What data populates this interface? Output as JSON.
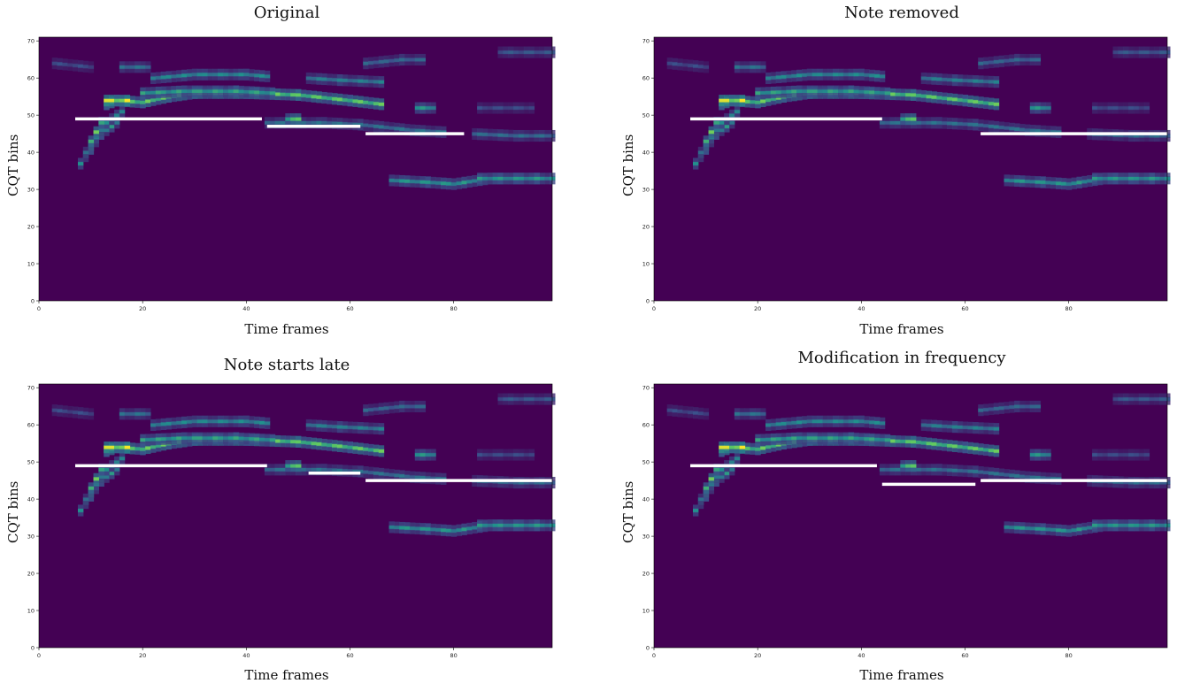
{
  "colors": {
    "background": "#440154",
    "low": "#472d7b",
    "mid": "#2a788e",
    "high": "#35b779",
    "peak": "#fde725",
    "note_line": "#ffffff"
  },
  "chart_data": [
    {
      "type": "heatmap",
      "title": "Original",
      "xlabel": "Time frames",
      "ylabel": "CQT bins",
      "xlim": [
        0,
        99
      ],
      "ylim": [
        0,
        71
      ],
      "xticks": [
        0,
        20,
        40,
        60,
        80
      ],
      "yticks": [
        0,
        10,
        20,
        30,
        40,
        50,
        60,
        70
      ],
      "notes": [
        {
          "start": 7,
          "end": 43,
          "bin": 49
        },
        {
          "start": 44,
          "end": 62,
          "bin": 47
        },
        {
          "start": 63,
          "end": 82,
          "bin": 45
        }
      ]
    },
    {
      "type": "heatmap",
      "title": "Note removed",
      "xlabel": "Time frames",
      "ylabel": "CQT bins",
      "xlim": [
        0,
        99
      ],
      "ylim": [
        0,
        71
      ],
      "xticks": [
        0,
        20,
        40,
        60,
        80
      ],
      "yticks": [
        0,
        10,
        20,
        30,
        40,
        50,
        60,
        70
      ],
      "notes": [
        {
          "start": 7,
          "end": 44,
          "bin": 49
        },
        {
          "start": 63,
          "end": 99,
          "bin": 45
        }
      ]
    },
    {
      "type": "heatmap",
      "title": "Note starts late",
      "xlabel": "Time frames",
      "ylabel": "CQT bins",
      "xlim": [
        0,
        99
      ],
      "ylim": [
        0,
        71
      ],
      "xticks": [
        0,
        20,
        40,
        60,
        80
      ],
      "yticks": [
        0,
        10,
        20,
        30,
        40,
        50,
        60,
        70
      ],
      "notes": [
        {
          "start": 7,
          "end": 44,
          "bin": 49
        },
        {
          "start": 52,
          "end": 62,
          "bin": 47
        },
        {
          "start": 63,
          "end": 99,
          "bin": 45
        }
      ]
    },
    {
      "type": "heatmap",
      "title": "Modification in frequency",
      "xlabel": "Time frames",
      "ylabel": "CQT bins",
      "xlim": [
        0,
        99
      ],
      "ylim": [
        0,
        71
      ],
      "xticks": [
        0,
        20,
        40,
        60,
        80
      ],
      "yticks": [
        0,
        10,
        20,
        30,
        40,
        50,
        60,
        70
      ],
      "notes": [
        {
          "start": 7,
          "end": 43,
          "bin": 49
        },
        {
          "start": 44,
          "end": 62,
          "bin": 44
        },
        {
          "start": 63,
          "end": 99,
          "bin": 45
        }
      ]
    }
  ],
  "spectrogram": {
    "ridges": [
      {
        "points": [
          [
            8,
            37
          ],
          [
            10,
            41
          ],
          [
            12,
            45
          ],
          [
            15,
            48
          ]
        ],
        "intensity": 0.55
      },
      {
        "points": [
          [
            9,
            40
          ],
          [
            11,
            44
          ],
          [
            13,
            48
          ],
          [
            16,
            51
          ]
        ],
        "intensity": 0.5
      },
      {
        "points": [
          [
            10,
            43
          ],
          [
            12,
            48
          ],
          [
            13,
            53
          ],
          [
            15,
            54
          ],
          [
            20,
            53.5
          ],
          [
            25,
            55
          ],
          [
            30,
            56
          ],
          [
            40,
            56
          ],
          [
            50,
            55.5
          ],
          [
            60,
            54
          ],
          [
            66,
            53
          ]
        ],
        "intensity": 0.78
      },
      {
        "points": [
          [
            13,
            54
          ],
          [
            17,
            54
          ]
        ],
        "intensity": 1.0
      },
      {
        "points": [
          [
            20,
            56
          ],
          [
            28,
            56.5
          ],
          [
            38,
            56.5
          ],
          [
            45,
            56
          ]
        ],
        "intensity": 0.6
      },
      {
        "points": [
          [
            22,
            60
          ],
          [
            30,
            61
          ],
          [
            40,
            61
          ],
          [
            44,
            60.5
          ]
        ],
        "intensity": 0.5
      },
      {
        "points": [
          [
            16,
            63
          ],
          [
            21,
            63
          ]
        ],
        "intensity": 0.4
      },
      {
        "points": [
          [
            52,
            60
          ],
          [
            58,
            59.5
          ],
          [
            66,
            59
          ]
        ],
        "intensity": 0.45
      },
      {
        "points": [
          [
            44,
            48
          ],
          [
            55,
            48
          ],
          [
            62,
            47.5
          ],
          [
            72,
            46
          ],
          [
            78,
            45.5
          ]
        ],
        "intensity": 0.4
      },
      {
        "points": [
          [
            48,
            49
          ],
          [
            50,
            49
          ]
        ],
        "intensity": 0.75
      },
      {
        "points": [
          [
            73,
            52
          ],
          [
            76,
            52
          ]
        ],
        "intensity": 0.55
      },
      {
        "points": [
          [
            84,
            45
          ],
          [
            92,
            44.5
          ],
          [
            99,
            44.5
          ]
        ],
        "intensity": 0.38
      },
      {
        "points": [
          [
            68,
            32.5
          ],
          [
            75,
            32
          ],
          [
            80,
            31.5
          ],
          [
            87,
            33
          ],
          [
            99,
            33
          ]
        ],
        "intensity": 0.55
      },
      {
        "points": [
          [
            85,
            33
          ],
          [
            96,
            33
          ]
        ],
        "intensity": 0.55
      },
      {
        "points": [
          [
            63,
            64
          ],
          [
            70,
            65
          ],
          [
            74,
            65
          ]
        ],
        "intensity": 0.35
      },
      {
        "points": [
          [
            89,
            67
          ],
          [
            99,
            67
          ]
        ],
        "intensity": 0.3
      },
      {
        "points": [
          [
            85,
            52
          ],
          [
            95,
            52
          ]
        ],
        "intensity": 0.25
      },
      {
        "points": [
          [
            3,
            64
          ],
          [
            10,
            63
          ]
        ],
        "intensity": 0.25
      }
    ]
  }
}
